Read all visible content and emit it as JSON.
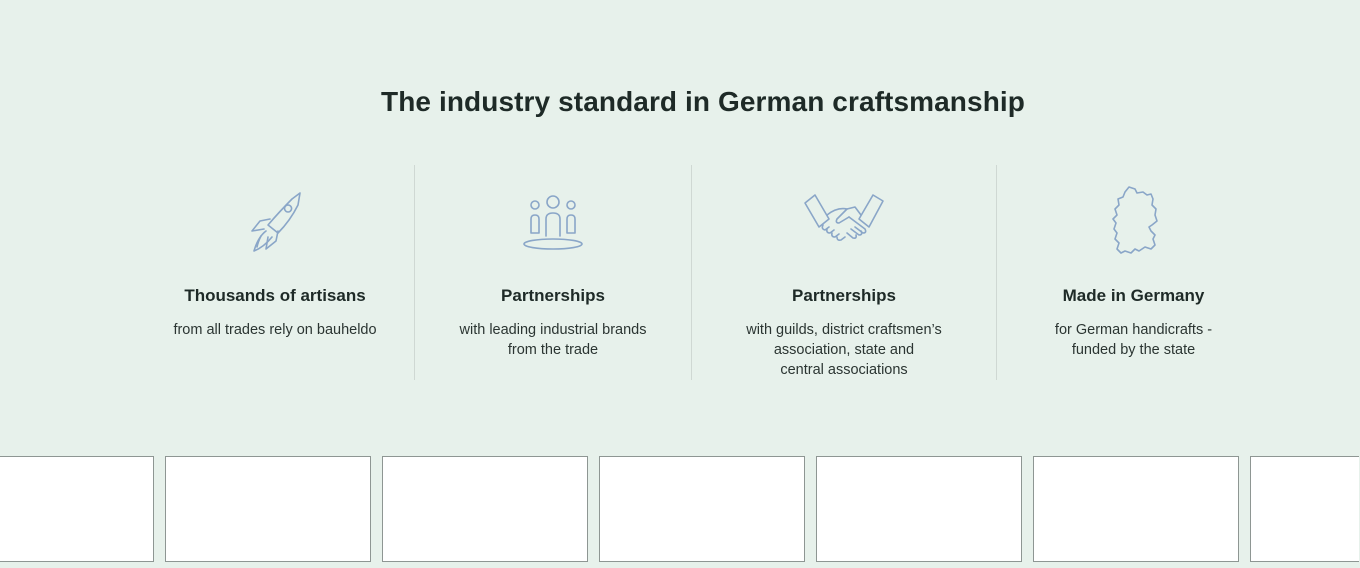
{
  "section": {
    "title": "The industry standard in German craftsmanship"
  },
  "features": [
    {
      "icon": "rocket-icon",
      "heading": "Thousands of artisans",
      "desc_lines": [
        "from all trades rely on bauheldo"
      ]
    },
    {
      "icon": "people-group-icon",
      "heading": "Partnerships",
      "desc_lines": [
        "with leading industrial brands",
        "from the trade"
      ]
    },
    {
      "icon": "handshake-icon",
      "heading": "Partnerships",
      "desc_lines": [
        "with guilds, district craftsmen’s",
        "association, state and",
        "central associations"
      ]
    },
    {
      "icon": "germany-map-icon",
      "heading": "Made in Germany",
      "desc_lines": [
        "for German handicrafts -",
        "funded by the state"
      ]
    }
  ],
  "colors": {
    "background": "#e7f1eb",
    "icon_stroke": "#8aa6c8",
    "text": "#1e2a27"
  }
}
